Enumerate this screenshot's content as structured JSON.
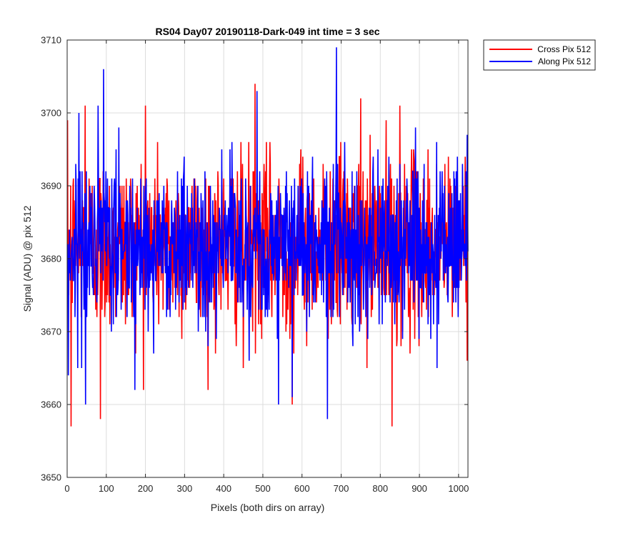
{
  "chart_data": {
    "type": "line",
    "title": "RS04 Day07 20190118-Dark-049 int time = 3 sec",
    "xlabel": "Pixels (both dirs on array)",
    "ylabel": "Signal (ADU) @ pix 512",
    "xlim": [
      0,
      1024
    ],
    "ylim": [
      3650,
      3710
    ],
    "xticks": [
      0,
      100,
      200,
      300,
      400,
      500,
      600,
      700,
      800,
      900,
      1000
    ],
    "yticks": [
      3650,
      3660,
      3670,
      3680,
      3690,
      3700,
      3710
    ],
    "xtick_labels": [
      "0",
      "100",
      "200",
      "300",
      "400",
      "500",
      "600",
      "700",
      "800",
      "900",
      "1000"
    ],
    "ytick_labels": [
      "3650",
      "3660",
      "3670",
      "3680",
      "3690",
      "3700",
      "3710"
    ],
    "grid": true,
    "legend_position": "outside-top-right",
    "series": [
      {
        "name": "Cross Pix 512",
        "color": "#ff0000",
        "x_start": 1,
        "x_step": 1,
        "count": 1024,
        "mean": 3682,
        "noise_sd": 6.0,
        "extremes": [
          [
            10,
            3657
          ],
          [
            85,
            3658
          ],
          [
            46,
            3701
          ],
          [
            200,
            3701
          ],
          [
            480,
            3704
          ],
          [
            575,
            3660
          ],
          [
            830,
            3657
          ],
          [
            750,
            3702
          ],
          [
            450,
            3665
          ],
          [
            850,
            3701
          ]
        ]
      },
      {
        "name": "Along Pix 512",
        "color": "#0000ff",
        "x_start": 1,
        "x_step": 1,
        "count": 1024,
        "mean": 3682,
        "noise_sd": 5.5,
        "extremes": [
          [
            3,
            3664
          ],
          [
            47,
            3660
          ],
          [
            93,
            3706
          ],
          [
            30,
            3700
          ],
          [
            485,
            3703
          ],
          [
            540,
            3660
          ],
          [
            575,
            3661
          ],
          [
            665,
            3658
          ],
          [
            688,
            3709
          ],
          [
            945,
            3665
          ]
        ]
      }
    ]
  }
}
